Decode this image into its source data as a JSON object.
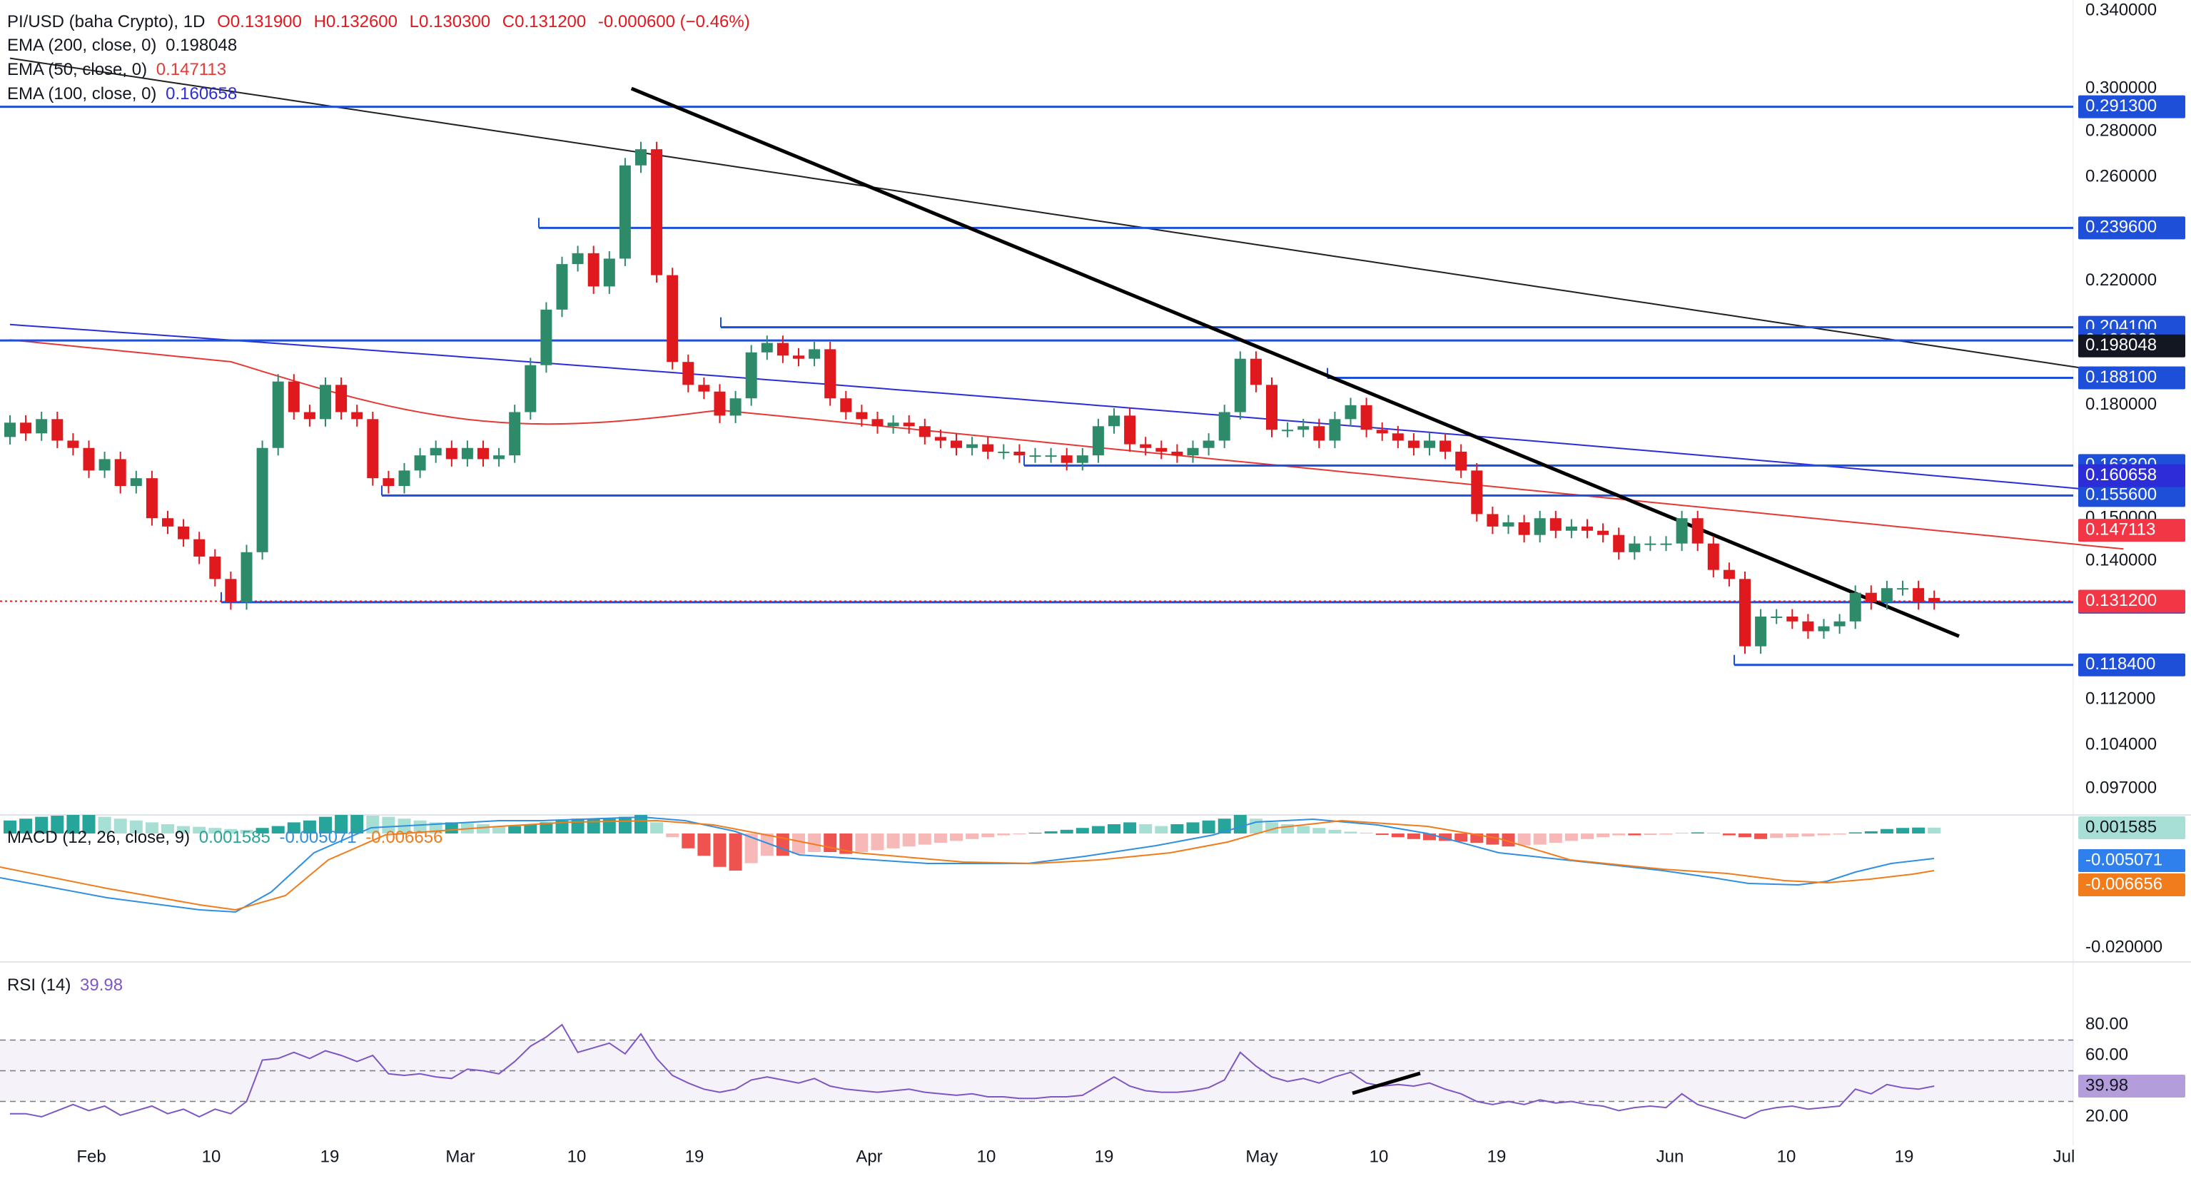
{
  "legend": {
    "symbol": "PI/USD (baha Crypto), 1D",
    "open": "O0.131900",
    "high": "H0.132600",
    "low": "L0.130300",
    "close": "C0.131200",
    "change": "-0.000600 (−0.46%)",
    "ema200_label": "EMA (200, close, 0)",
    "ema200_value": "0.198048",
    "ema50_label": "EMA (50, close, 0)",
    "ema50_value": "0.147113",
    "ema100_label": "EMA (100, close, 0)",
    "ema100_value": "0.160658",
    "macd_label": "MACD (12, 26, close, 9)",
    "macd_hist": "0.001585",
    "macd_line": "-0.005071",
    "macd_signal": "-0.006656",
    "rsi_label": "RSI (14)",
    "rsi_value": "39.98"
  },
  "colors": {
    "up": "#2e8b6a",
    "down": "#e0191e",
    "ema200": "#222222",
    "ema50": "#e53935",
    "ema100": "#2d2dd8",
    "level": "#1e4fd8",
    "trend": "#000000",
    "macd": "#2f8fe0",
    "signal": "#f07c1b",
    "hist_up": "#26a69a",
    "hist_up_light": "#a7dfd5",
    "hist_down": "#ef5350",
    "hist_down_light": "#f7b9b7",
    "rsi": "#7e57c2"
  },
  "chart_data": {
    "type": "candlestick",
    "price_axis": [
      "0.340000",
      "0.300000",
      "0.280000",
      "0.260000",
      "0.220000",
      "0.180000",
      "0.150000",
      "0.140000",
      "0.112000",
      "0.104000",
      "0.097000"
    ],
    "macd_axis": [
      "-0.020000"
    ],
    "rsi_axis": [
      "80.00",
      "60.00",
      "20.00"
    ],
    "x_axis": [
      "Feb",
      "10",
      "19",
      "Mar",
      "10",
      "19",
      "Apr",
      "10",
      "19",
      "May",
      "10",
      "19",
      "Jun",
      "10",
      "19",
      "Jul"
    ],
    "levels": [
      {
        "label": "0.291300",
        "value": 0.2913
      },
      {
        "label": "0.239600",
        "value": 0.2396
      },
      {
        "label": "0.204100",
        "value": 0.2041
      },
      {
        "label": "0.199800",
        "value": 0.1998
      },
      {
        "label": "0.188100",
        "value": 0.1881
      },
      {
        "label": "0.163300",
        "value": 0.1633
      },
      {
        "label": "0.155600",
        "value": 0.1556
      },
      {
        "label": "0.131000",
        "value": 0.131
      },
      {
        "label": "0.118400",
        "value": 0.1184
      }
    ],
    "tags": [
      {
        "label": "0.198048",
        "value": 0.198048,
        "kind": "ema200"
      },
      {
        "label": "0.160658",
        "value": 0.160658,
        "kind": "ema100"
      },
      {
        "label": "0.147113",
        "value": 0.147113,
        "kind": "ema50"
      },
      {
        "label": "0.131200",
        "value": 0.1312,
        "kind": "last"
      }
    ],
    "macd_tags": [
      "0.001585",
      "-0.005071",
      "-0.006656"
    ],
    "rsi_tag": "39.98",
    "close": [
      0.175,
      0.172,
      0.176,
      0.17,
      0.168,
      0.162,
      0.165,
      0.158,
      0.16,
      0.15,
      0.148,
      0.145,
      0.141,
      0.136,
      0.131,
      0.142,
      0.168,
      0.187,
      0.178,
      0.176,
      0.186,
      0.178,
      0.176,
      0.16,
      0.158,
      0.162,
      0.166,
      0.168,
      0.165,
      0.168,
      0.165,
      0.166,
      0.178,
      0.192,
      0.21,
      0.226,
      0.23,
      0.218,
      0.228,
      0.265,
      0.272,
      0.222,
      0.193,
      0.186,
      0.184,
      0.177,
      0.182,
      0.196,
      0.199,
      0.195,
      0.194,
      0.197,
      0.182,
      0.178,
      0.176,
      0.174,
      0.175,
      0.174,
      0.171,
      0.17,
      0.168,
      0.169,
      0.167,
      0.167,
      0.166,
      0.166,
      0.166,
      0.164,
      0.166,
      0.174,
      0.177,
      0.169,
      0.168,
      0.167,
      0.166,
      0.168,
      0.17,
      0.178,
      0.194,
      0.186,
      0.173,
      0.173,
      0.174,
      0.17,
      0.176,
      0.18,
      0.173,
      0.172,
      0.17,
      0.168,
      0.17,
      0.167,
      0.162,
      0.151,
      0.148,
      0.149,
      0.146,
      0.15,
      0.147,
      0.148,
      0.147,
      0.146,
      0.142,
      0.144,
      0.144,
      0.144,
      0.15,
      0.144,
      0.138,
      0.136,
      0.122,
      0.128,
      0.128,
      0.127,
      0.125,
      0.126,
      0.127,
      0.133,
      0.131,
      0.134,
      0.134,
      0.131,
      0.131
    ],
    "open": [
      0.171,
      0.175,
      0.172,
      0.176,
      0.17,
      0.168,
      0.162,
      0.165,
      0.158,
      0.16,
      0.15,
      0.148,
      0.145,
      0.141,
      0.136,
      0.131,
      0.142,
      0.168,
      0.187,
      0.178,
      0.176,
      0.186,
      0.178,
      0.176,
      0.16,
      0.158,
      0.162,
      0.166,
      0.168,
      0.165,
      0.168,
      0.165,
      0.166,
      0.178,
      0.192,
      0.21,
      0.226,
      0.23,
      0.218,
      0.228,
      0.265,
      0.272,
      0.222,
      0.193,
      0.186,
      0.184,
      0.177,
      0.182,
      0.196,
      0.199,
      0.195,
      0.194,
      0.197,
      0.182,
      0.178,
      0.176,
      0.174,
      0.175,
      0.174,
      0.171,
      0.17,
      0.168,
      0.169,
      0.167,
      0.167,
      0.166,
      0.166,
      0.166,
      0.164,
      0.166,
      0.174,
      0.177,
      0.169,
      0.168,
      0.167,
      0.166,
      0.168,
      0.17,
      0.178,
      0.194,
      0.186,
      0.173,
      0.173,
      0.174,
      0.17,
      0.176,
      0.18,
      0.173,
      0.172,
      0.17,
      0.168,
      0.17,
      0.167,
      0.162,
      0.151,
      0.148,
      0.149,
      0.146,
      0.15,
      0.147,
      0.148,
      0.147,
      0.146,
      0.142,
      0.144,
      0.144,
      0.144,
      0.15,
      0.144,
      0.138,
      0.136,
      0.122,
      0.128,
      0.128,
      0.127,
      0.125,
      0.126,
      0.127,
      0.133,
      0.131,
      0.134,
      0.134,
      0.1319
    ]
  },
  "macd_histogram": [
    0.0035,
    0.004,
    0.0045,
    0.0048,
    0.005,
    0.005,
    0.0045,
    0.004,
    0.0035,
    0.003,
    0.0025,
    0.002,
    0.0018,
    0.0015,
    0.0012,
    0.001,
    0.0015,
    0.002,
    0.003,
    0.0035,
    0.0045,
    0.005,
    0.005,
    0.0048,
    0.0045,
    0.004,
    0.0035,
    0.003,
    0.003,
    0.0028,
    0.0025,
    0.002,
    0.002,
    0.0025,
    0.003,
    0.0035,
    0.004,
    0.004,
    0.004,
    0.0045,
    0.005,
    0.003,
    -0.001,
    -0.004,
    -0.006,
    -0.009,
    -0.01,
    -0.008,
    -0.006,
    -0.006,
    -0.0055,
    -0.005,
    -0.005,
    -0.0055,
    -0.005,
    -0.0045,
    -0.004,
    -0.0035,
    -0.003,
    -0.0025,
    -0.002,
    -0.0015,
    -0.001,
    -0.0005,
    -0.0002,
    0.0002,
    0.0006,
    0.001,
    0.0015,
    0.002,
    0.0025,
    0.003,
    0.0025,
    0.002,
    0.0025,
    0.003,
    0.0035,
    0.004,
    0.005,
    0.004,
    0.003,
    0.0025,
    0.002,
    0.0015,
    0.001,
    0.0005,
    0.0002,
    -0.0004,
    -0.001,
    -0.0015,
    -0.0018,
    -0.002,
    -0.0022,
    -0.0025,
    -0.003,
    -0.0035,
    -0.0032,
    -0.003,
    -0.0025,
    -0.002,
    -0.0015,
    -0.001,
    -0.0005,
    -0.0005,
    -0.0004,
    -0.0003,
    0.0002,
    0.0003,
    0.0002,
    -0.0005,
    -0.001,
    -0.0015,
    -0.0012,
    -0.001,
    -0.0008,
    -0.0005,
    -0.0003,
    0.0003,
    0.0006,
    0.0012,
    0.0015,
    0.0016,
    0.001585
  ]
}
